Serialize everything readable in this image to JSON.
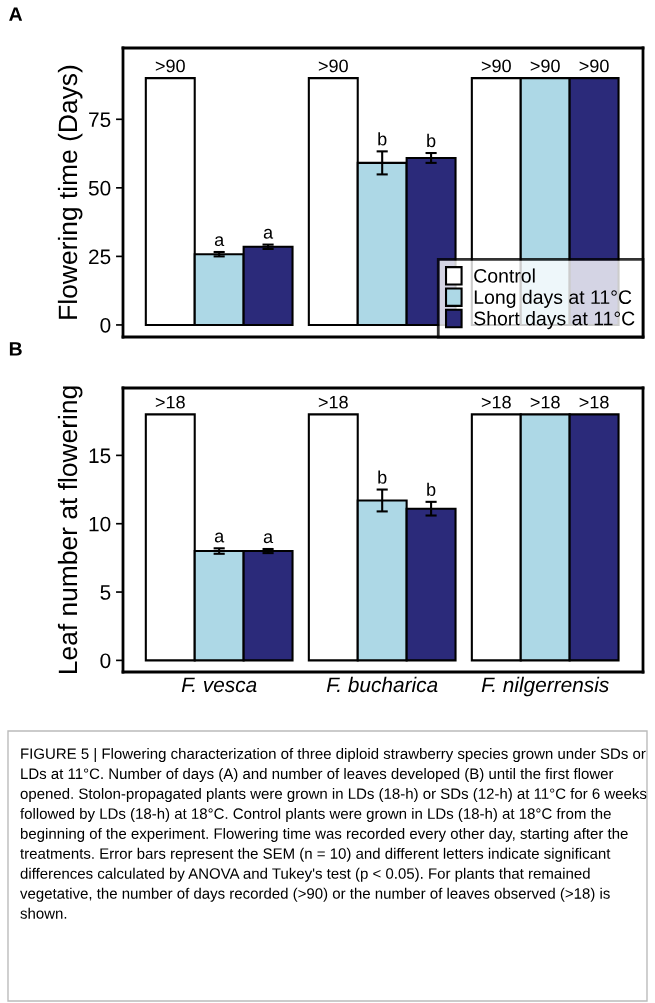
{
  "chart_data": [
    {
      "type": "bar",
      "title": "A",
      "ylabel": "Flowering time (Days)",
      "categories": [
        null,
        null,
        null
      ],
      "ylim": [
        -4.4,
        101
      ],
      "yticks": [
        0,
        25,
        50,
        75
      ],
      "legend": "bottom right",
      "tick_labels": "y",
      "series": [
        {
          "name": "Control",
          "color": "#ffffff",
          "values": [
            90,
            90,
            90
          ],
          "value_labels": [
            ">90",
            ">90",
            ">90"
          ]
        },
        {
          "name": "Long days at 11°C",
          "color": "#add8e6",
          "values": [
            25.8,
            59.1,
            90
          ],
          "errors": [
            0.8,
            4.2,
            null
          ],
          "value_labels": [
            "a",
            "b",
            ">90"
          ]
        },
        {
          "name": "Short days at 11°C",
          "color": "#2b2a7a",
          "values": [
            28.5,
            60.9,
            90
          ],
          "errors": [
            0.8,
            1.8,
            null
          ],
          "value_labels": [
            "a",
            "b",
            ">90"
          ]
        }
      ]
    },
    {
      "type": "bar",
      "title": "B",
      "ylabel": "Leaf number at flowering",
      "categories": [
        "F. vesca",
        "F. bucharica",
        "F. nilgerrensis"
      ],
      "ylim": [
        -0.85,
        19.93
      ],
      "yticks": [
        0,
        5,
        10,
        15
      ],
      "series": [
        {
          "color": "#ffffff",
          "values": [
            18,
            18,
            18
          ],
          "value_labels": [
            ">18",
            ">18",
            ">18"
          ]
        },
        {
          "color": "#add8e6",
          "values": [
            8.0,
            11.7,
            18
          ],
          "errors": [
            0.2,
            0.8,
            null
          ],
          "value_labels": [
            "a",
            "b",
            ">18"
          ]
        },
        {
          "color": "#2b2a7a",
          "values": [
            8.0,
            11.1,
            18
          ],
          "errors": [
            0.15,
            0.5,
            null
          ],
          "value_labels": [
            "a",
            "b",
            ">18"
          ]
        }
      ],
      "annotations": [
        "FIGURE 5 | Flowering characterization of three diploid strawberry species grown under SDs or LDs at 11°C. Number of days (A) and number of leaves developed (B) until the first flower opened. Stolon-propagated plants were grown in LDs (18-h) or SDs (12-h) at 11°C for 6 weeks followed by LDs (18-h) at 18°C. Control plants were grown in LDs (18-h) at 18°C from the beginning of the experiment. Flowering time was recorded every other day, starting after the treatments. Error bars represent the SEM (n = 10) and different letters indicate significant differences calculated by ANOVA and Tukey's test (p < 0.05). For plants that remained vegetative, the number of days recorded (>90) or the number of leaves observed (>18) is shown."
      ]
    }
  ]
}
